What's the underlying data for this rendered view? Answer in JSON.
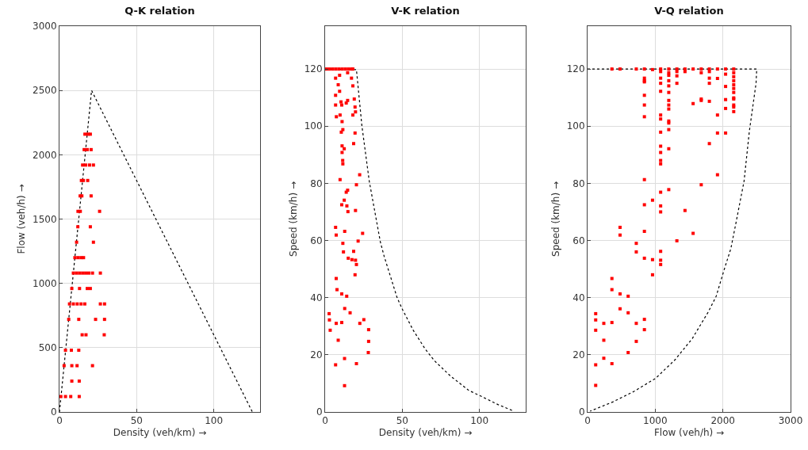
{
  "chart_data": [
    {
      "type": "scatter",
      "title": "Q-K relation",
      "xlabel": "Density (veh/km) →",
      "ylabel": "Flow (veh/h) →",
      "xlim": [
        0,
        130
      ],
      "xticks": [
        0,
        50,
        100
      ],
      "ylim": [
        0,
        3000
      ],
      "yticks": [
        0,
        500,
        1000,
        1500,
        2000,
        2500,
        3000
      ],
      "grid": true,
      "marker": "square",
      "series": [
        {
          "type": "line",
          "color": "#000000",
          "line_style": "dotted",
          "marker": "none",
          "x": [
            0,
            20.8,
            125
          ],
          "values": [
            0,
            2500,
            0
          ]
        },
        {
          "color": "#ff0000",
          "x": [
            0.9,
            3.9,
            7.3,
            12.8,
            8,
            12.8,
            3,
            8,
            11.4,
            21.4,
            3.9,
            7.7,
            12.5,
            14.7,
            17.2,
            29,
            6,
            12.5,
            23.4,
            29.2,
            6.5,
            9,
            11.5,
            14,
            16.4,
            26.5,
            29.2,
            8,
            13,
            18,
            20,
            9,
            11,
            13,
            15,
            17,
            19,
            21.4,
            26.5,
            10,
            12,
            14,
            15.6,
            11.1,
            22,
            11.9,
            20,
            12,
            13.5,
            26,
            13.4,
            14.5,
            20.5,
            14.2,
            15.5,
            18.3,
            15,
            17,
            19.5,
            22,
            16,
            18,
            20.5,
            16.5,
            18.5,
            20
          ],
          "values": [
            120,
            120,
            120,
            120,
            240,
            240,
            360,
            360,
            360,
            360,
            480,
            480,
            480,
            600,
            600,
            600,
            720,
            720,
            720,
            720,
            840,
            840,
            840,
            840,
            840,
            840,
            840,
            960,
            960,
            960,
            960,
            1080,
            1080,
            1080,
            1080,
            1080,
            1080,
            1080,
            1080,
            1200,
            1200,
            1200,
            1200,
            1320,
            1320,
            1440,
            1440,
            1560,
            1560,
            1560,
            1680,
            1680,
            1680,
            1800,
            1800,
            1800,
            1920,
            1920,
            1920,
            1920,
            2040,
            2040,
            2040,
            2160,
            2160,
            2160
          ]
        }
      ]
    },
    {
      "type": "scatter",
      "title": "V-K relation",
      "xlabel": "Density (veh/km) →",
      "ylabel": "Speed (km/h) →",
      "xlim": [
        0,
        130
      ],
      "xticks": [
        0,
        50,
        100
      ],
      "ylim": [
        0,
        135
      ],
      "yticks": [
        0,
        20,
        40,
        60,
        80,
        100,
        120
      ],
      "grid": true,
      "marker": "square",
      "series": [
        {
          "type": "line",
          "color": "#000000",
          "line_style": "dotted",
          "marker": "none",
          "x": [
            0,
            20.3,
            23.8,
            28.6,
            35.8,
            38.3,
            46.6,
            50.1,
            57.2,
            64.9,
            70.9,
            81.2,
            93.2,
            100,
            112,
            122.3
          ],
          "values": [
            120,
            119.8,
            100.3,
            80.8,
            59.5,
            54.4,
            40.1,
            35.9,
            28.5,
            22,
            17.9,
            12.6,
            7.5,
            5.8,
            2.6,
            0.3
          ]
        },
        {
          "color": "#ff0000",
          "x": [
            1,
            3,
            5,
            7,
            9,
            11,
            13,
            15,
            17,
            18,
            6.8,
            9.4,
            14.6,
            17.1,
            8.5,
            18,
            6.8,
            9.4,
            10.3,
            14.6,
            18.9,
            6.8,
            10.8,
            13.7,
            19.4,
            19.7,
            18,
            7.3,
            9.7,
            11,
            11.5,
            10.5,
            19.4,
            18.5,
            11,
            12.4,
            11,
            11.4,
            11.5,
            22.4,
            9.7,
            20.3,
            14.6,
            13.7,
            12.4,
            10.8,
            14.1,
            14.8,
            19.7,
            6.8,
            7.2,
            12.7,
            24.3,
            21.4,
            11.5,
            11.9,
            18.5,
            15,
            17.4,
            19.7,
            20.3,
            19.4,
            7.2,
            7.7,
            10.8,
            14,
            12.7,
            16.2,
            2.6,
            2.8,
            7.2,
            10.8,
            22.5,
            25.1,
            3.3,
            28.2,
            8.5,
            28.2,
            28,
            12.6,
            6.8,
            20.3,
            12.6
          ],
          "values": [
            120,
            120,
            120,
            120,
            120,
            120,
            120,
            120,
            120,
            120,
            116.8,
            117.8,
            118.7,
            116.8,
            114.5,
            114.1,
            110.8,
            112.2,
            108.5,
            109,
            109.5,
            107.4,
            107.4,
            108.1,
            106.7,
            105,
            103.9,
            103.3,
            103.9,
            101.6,
            98.8,
            97.9,
            97.6,
            93.9,
            93.1,
            92.1,
            90.8,
            88,
            86.8,
            83,
            81.3,
            79.5,
            77.6,
            76.9,
            74.1,
            72.5,
            72.1,
            70.1,
            70.5,
            64.6,
            61.9,
            63.2,
            62.5,
            59.8,
            59,
            56,
            56.2,
            53.8,
            53.3,
            53.1,
            51.6,
            48,
            46.7,
            42.8,
            41.3,
            40.5,
            36.2,
            34.7,
            34.4,
            32.2,
            31,
            31.3,
            31,
            32.3,
            28.6,
            28.8,
            25.1,
            24.7,
            20.8,
            18.7,
            16.5,
            16.9,
            9.2
          ]
        }
      ]
    },
    {
      "type": "scatter",
      "title": "V-Q relation",
      "xlabel": "Flow (veh/h) →",
      "ylabel": "Speed (km/h) →",
      "xlim": [
        0,
        3000
      ],
      "xticks": [
        0,
        1000,
        2000,
        3000
      ],
      "ylim": [
        0,
        135
      ],
      "yticks": [
        0,
        20,
        40,
        60,
        80,
        100,
        120
      ],
      "grid": true,
      "marker": "square",
      "series": [
        {
          "type": "line",
          "color": "#000000",
          "line_style": "dotted",
          "marker": "none",
          "x": [
            0,
            2500,
            2490,
            2392,
            2313,
            2196,
            2118,
            2019,
            1901,
            1784,
            1548,
            1294,
            1007,
            686,
            372,
            39
          ],
          "values": [
            120,
            120,
            115,
            98.4,
            80.8,
            66.5,
            57.2,
            49.8,
            40.5,
            35,
            25.7,
            18.3,
            11.8,
            7.2,
            3.5,
            0.3
          ]
        },
        {
          "color": "#ff0000",
          "x": [
            120,
            120,
            120,
            120,
            120,
            240,
            240,
            240,
            360,
            360,
            360,
            360,
            360,
            480,
            480,
            480,
            480,
            480,
            600,
            600,
            600,
            720,
            720,
            720,
            720,
            720,
            840,
            840,
            840,
            840,
            840,
            840,
            840,
            840,
            840,
            840,
            840,
            840,
            840,
            960,
            960,
            960,
            960,
            1080,
            1080,
            1080,
            1080,
            1080,
            1080,
            1080,
            1080,
            1080,
            1080,
            1080,
            1080,
            1080,
            1080,
            1080,
            1080,
            1080,
            1080,
            1200,
            1200,
            1200,
            1200,
            1200,
            1200,
            1200,
            1200,
            1200,
            1200,
            1200,
            1200,
            1200,
            1200,
            1320,
            1320,
            1320,
            1320,
            1320,
            1440,
            1440,
            1440,
            1560,
            1560,
            1560,
            1680,
            1680,
            1680,
            1680,
            1680,
            1800,
            1800,
            1800,
            1800,
            1800,
            1800,
            1920,
            1920,
            1920,
            1920,
            1920,
            2040,
            2040,
            2040,
            2040,
            2040,
            2040,
            2160,
            2160,
            2160,
            2160,
            2160,
            2160,
            2160,
            2160,
            2160,
            2160,
            2160,
            2160
          ],
          "values": [
            34.4,
            32.2,
            28.6,
            16.5,
            9.3,
            31,
            25.1,
            18.8,
            120,
            46.7,
            42.8,
            31.3,
            16.9,
            120,
            64.6,
            61.9,
            41.3,
            36.1,
            40.5,
            34.7,
            20.8,
            120,
            59,
            56,
            31,
            24.7,
            120,
            116.8,
            115.9,
            115.5,
            110.8,
            107.4,
            103.3,
            81.3,
            72.5,
            63.2,
            53.8,
            32.4,
            28.8,
            119.8,
            74.1,
            53.3,
            48,
            120,
            119.1,
            116.8,
            115,
            112.2,
            103.9,
            102.5,
            97.9,
            93,
            90.8,
            88,
            86.8,
            76.9,
            72.1,
            70,
            56.2,
            53.1,
            51.6,
            120,
            118.7,
            117.8,
            115.9,
            114.1,
            111.8,
            109,
            107.4,
            106,
            101.8,
            101.1,
            98.8,
            92.1,
            77.8,
            120,
            119.1,
            117.6,
            115,
            59.9,
            120,
            119.1,
            70.5,
            120,
            107.9,
            62.5,
            120,
            118.7,
            109.5,
            109,
            79.5,
            120,
            119.1,
            116.8,
            115,
            108.7,
            93.9,
            120,
            116.7,
            103.9,
            97.6,
            83,
            120,
            118.2,
            113.9,
            109.3,
            106.2,
            97.6,
            120,
            118.7,
            117.3,
            115.9,
            114.5,
            113.2,
            111.8,
            109.9,
            109.5,
            107.4,
            106.7,
            105.1
          ]
        }
      ]
    }
  ]
}
